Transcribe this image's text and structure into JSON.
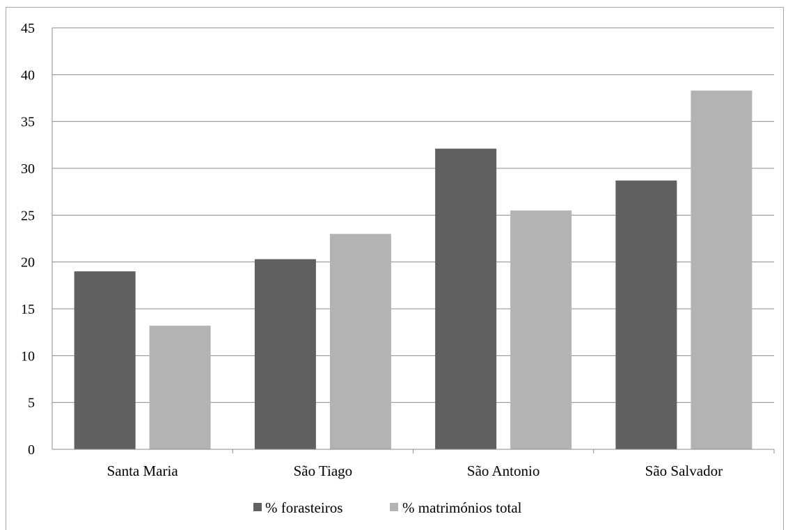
{
  "chart_data": {
    "type": "bar",
    "categories": [
      "Santa Maria",
      "São Tiago",
      "São Antonio",
      "São Salvador"
    ],
    "series": [
      {
        "name": "% forasteiros",
        "color": "#606060",
        "values": [
          19.0,
          20.3,
          32.1,
          28.7
        ]
      },
      {
        "name": "% matrimónios total",
        "color": "#b3b3b3",
        "values": [
          13.2,
          23.0,
          25.5,
          38.3
        ]
      }
    ],
    "ylim": [
      0,
      45
    ],
    "yticks": [
      0,
      5,
      10,
      15,
      20,
      25,
      30,
      35,
      40,
      45
    ],
    "grid": true,
    "legend": "bottom",
    "title": "",
    "xlabel": "",
    "ylabel": ""
  }
}
